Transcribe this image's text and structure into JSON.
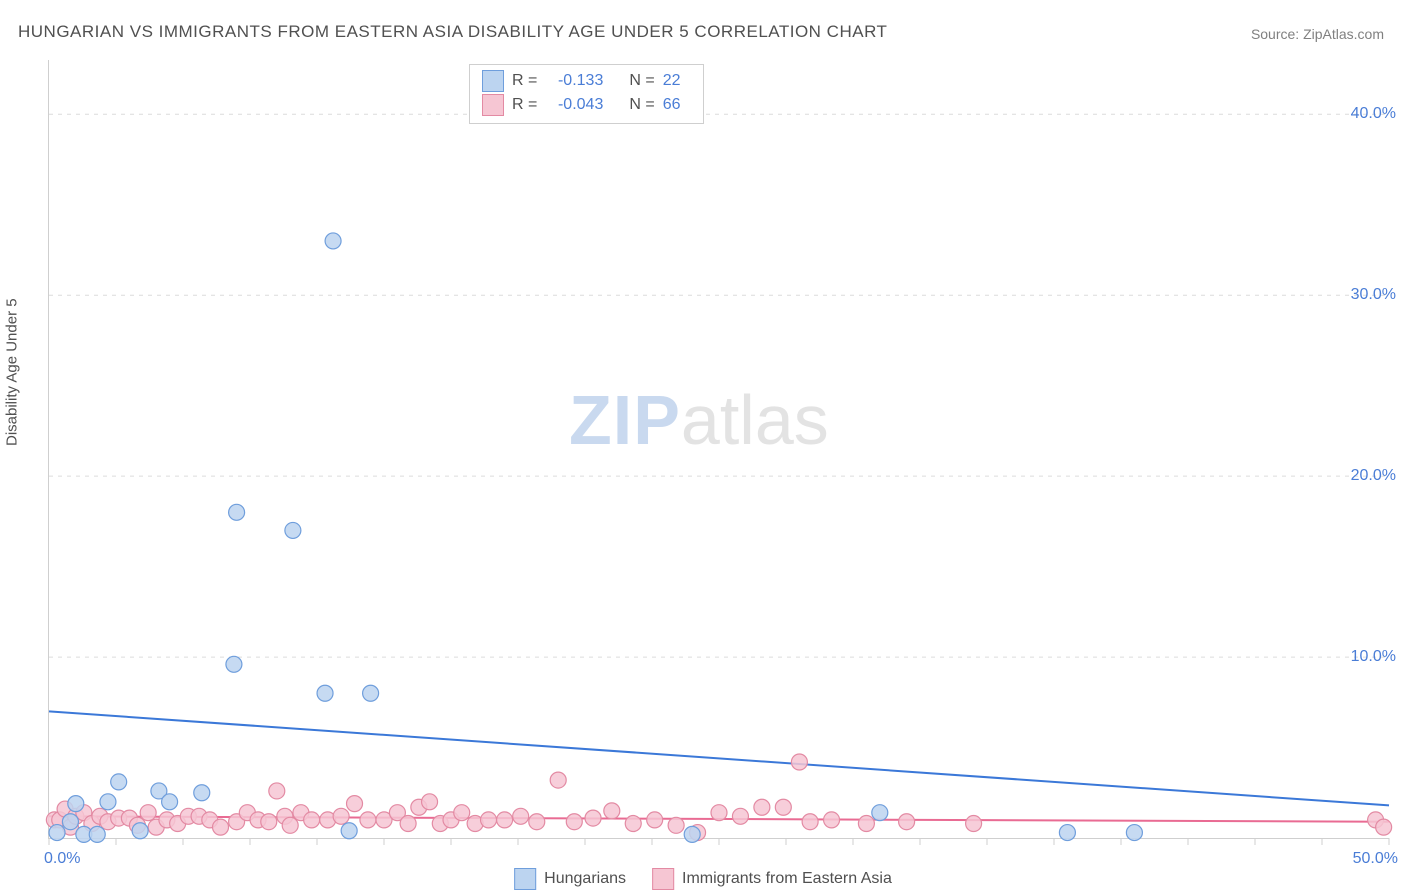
{
  "title": "HUNGARIAN VS IMMIGRANTS FROM EASTERN ASIA DISABILITY AGE UNDER 5 CORRELATION CHART",
  "source_label": "Source: ZipAtlas.com",
  "ylabel": "Disability Age Under 5",
  "watermark": {
    "zip": "ZIP",
    "atlas": "atlas"
  },
  "chart": {
    "type": "scatter",
    "background_color": "#ffffff",
    "grid_color": "#dcdcdc",
    "axis_color": "#cfcfcf",
    "label_color": "#505050",
    "tick_label_color": "#4a7dd6",
    "xlim": [
      0,
      50
    ],
    "ylim": [
      0,
      43
    ],
    "x_ticks_major": [
      0,
      50
    ],
    "x_ticks_minor_step": 2.5,
    "y_gridlines": [
      10,
      20,
      30,
      40
    ],
    "y_tick_labels": [
      "10.0%",
      "20.0%",
      "30.0%",
      "40.0%"
    ],
    "x_tick_labels": {
      "left": "0.0%",
      "right": "50.0%"
    },
    "marker_radius": 8,
    "marker_stroke_width": 1.2,
    "line_width": 2,
    "series": [
      {
        "key": "hungarians",
        "label": "Hungarians",
        "fill": "#bcd4f0",
        "stroke": "#6f9edc",
        "line_color": "#3b78d8",
        "R": "-0.133",
        "N": "22",
        "trend": {
          "x1": 0,
          "y1": 7.0,
          "x2": 50,
          "y2": 1.8
        },
        "points": [
          [
            0.3,
            0.3
          ],
          [
            0.8,
            0.9
          ],
          [
            1.0,
            1.9
          ],
          [
            1.3,
            0.2
          ],
          [
            1.8,
            0.2
          ],
          [
            2.2,
            2.0
          ],
          [
            2.6,
            3.1
          ],
          [
            3.4,
            0.4
          ],
          [
            4.1,
            2.6
          ],
          [
            4.5,
            2.0
          ],
          [
            5.7,
            2.5
          ],
          [
            6.9,
            9.6
          ],
          [
            7.0,
            18.0
          ],
          [
            9.1,
            17.0
          ],
          [
            10.3,
            8.0
          ],
          [
            10.6,
            33.0
          ],
          [
            11.2,
            0.4
          ],
          [
            12.0,
            8.0
          ],
          [
            24.0,
            0.2
          ],
          [
            31.0,
            1.4
          ],
          [
            38.0,
            0.3
          ],
          [
            40.5,
            0.3
          ]
        ]
      },
      {
        "key": "immigrants",
        "label": "Immigrants from Eastern Asia",
        "fill": "#f6c6d3",
        "stroke": "#e38aa3",
        "line_color": "#e96b93",
        "R": "-0.043",
        "N": "66",
        "trend": {
          "x1": 0,
          "y1": 1.2,
          "x2": 50,
          "y2": 0.9
        },
        "points": [
          [
            0.2,
            1.0
          ],
          [
            0.4,
            1.0
          ],
          [
            0.6,
            1.6
          ],
          [
            0.8,
            0.6
          ],
          [
            1.0,
            1.2
          ],
          [
            1.3,
            1.4
          ],
          [
            1.6,
            0.8
          ],
          [
            1.9,
            1.2
          ],
          [
            2.2,
            0.9
          ],
          [
            2.6,
            1.1
          ],
          [
            3.0,
            1.1
          ],
          [
            3.3,
            0.7
          ],
          [
            3.7,
            1.4
          ],
          [
            4.0,
            0.6
          ],
          [
            4.4,
            1.0
          ],
          [
            4.8,
            0.8
          ],
          [
            5.2,
            1.2
          ],
          [
            5.6,
            1.2
          ],
          [
            6.0,
            1.0
          ],
          [
            6.4,
            0.6
          ],
          [
            7.0,
            0.9
          ],
          [
            7.4,
            1.4
          ],
          [
            7.8,
            1.0
          ],
          [
            8.2,
            0.9
          ],
          [
            8.5,
            2.6
          ],
          [
            8.8,
            1.2
          ],
          [
            9.0,
            0.7
          ],
          [
            9.4,
            1.4
          ],
          [
            9.8,
            1.0
          ],
          [
            10.4,
            1.0
          ],
          [
            10.9,
            1.2
          ],
          [
            11.4,
            1.9
          ],
          [
            11.9,
            1.0
          ],
          [
            12.5,
            1.0
          ],
          [
            13.0,
            1.4
          ],
          [
            13.4,
            0.8
          ],
          [
            13.8,
            1.7
          ],
          [
            14.2,
            2.0
          ],
          [
            14.6,
            0.8
          ],
          [
            15.0,
            1.0
          ],
          [
            15.4,
            1.4
          ],
          [
            15.9,
            0.8
          ],
          [
            16.4,
            1.0
          ],
          [
            17.0,
            1.0
          ],
          [
            17.6,
            1.2
          ],
          [
            18.2,
            0.9
          ],
          [
            19.0,
            3.2
          ],
          [
            19.6,
            0.9
          ],
          [
            20.3,
            1.1
          ],
          [
            21.0,
            1.5
          ],
          [
            21.8,
            0.8
          ],
          [
            22.6,
            1.0
          ],
          [
            23.4,
            0.7
          ],
          [
            24.2,
            0.3
          ],
          [
            25.0,
            1.4
          ],
          [
            25.8,
            1.2
          ],
          [
            26.6,
            1.7
          ],
          [
            27.4,
            1.7
          ],
          [
            28.0,
            4.2
          ],
          [
            28.4,
            0.9
          ],
          [
            29.2,
            1.0
          ],
          [
            30.5,
            0.8
          ],
          [
            32.0,
            0.9
          ],
          [
            34.5,
            0.8
          ],
          [
            49.5,
            1.0
          ],
          [
            49.8,
            0.6
          ]
        ]
      }
    ]
  },
  "corr_box": {
    "r_label": "R =",
    "n_label": "N ="
  }
}
